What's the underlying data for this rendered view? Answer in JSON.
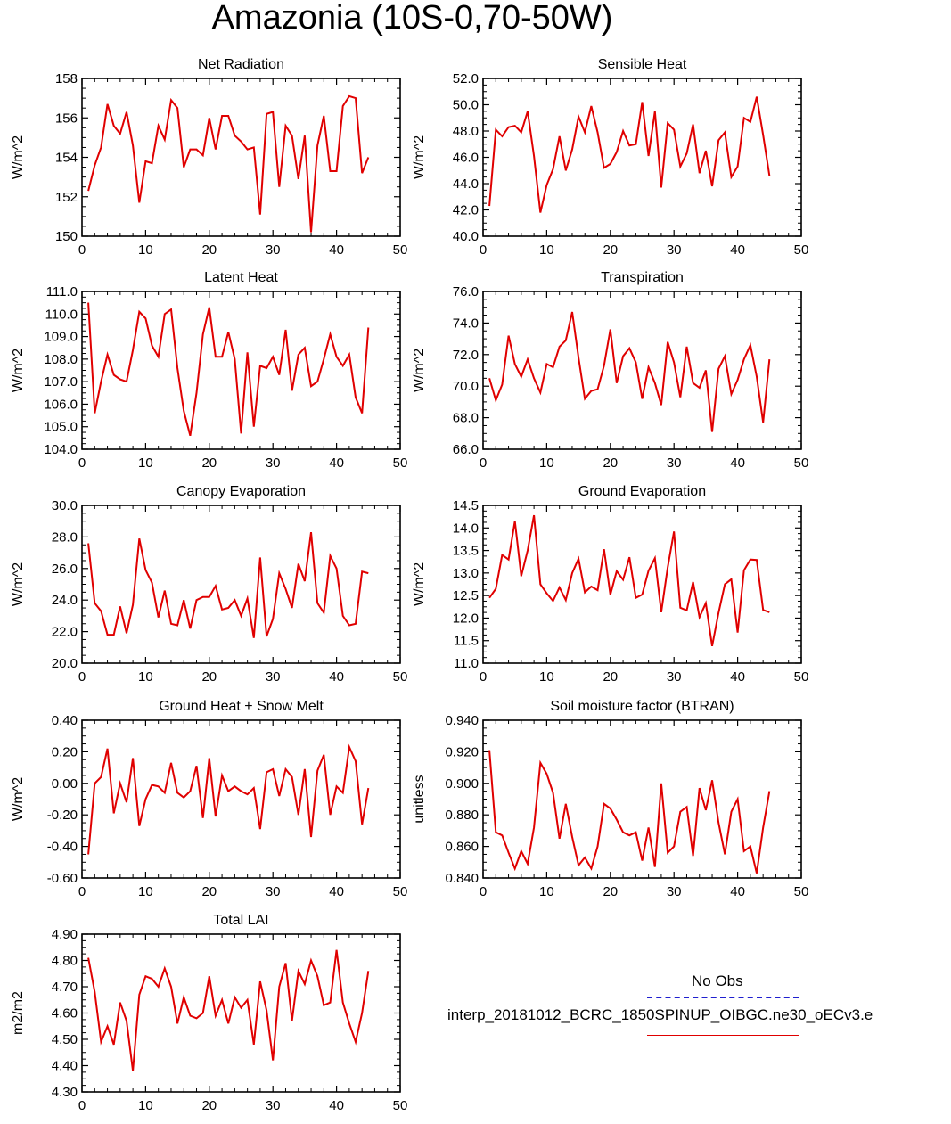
{
  "title": "Amazonia (10S-0,70-50W)",
  "legend": {
    "obs_label": "No Obs",
    "model_label": "interp_20181012_BCRC_1850SPINUP_OIBGC.ne30_oECv3.e"
  },
  "colors": {
    "model_line": "#e00000",
    "obs_line": "#1f1fcf",
    "axis": "#000000"
  },
  "chart_data": [
    {
      "type": "line",
      "title": "Net Radiation",
      "ylabel": "W/m^2",
      "xlim": [
        0,
        50
      ],
      "ylim": [
        150,
        158
      ],
      "xticks": [
        0,
        10,
        20,
        30,
        40,
        50
      ],
      "yticks": [
        "150",
        "152",
        "154",
        "156",
        "158"
      ],
      "x": [
        1,
        2,
        3,
        4,
        5,
        6,
        7,
        8,
        9,
        10,
        11,
        12,
        13,
        14,
        15,
        16,
        17,
        18,
        19,
        20,
        21,
        22,
        23,
        24,
        25,
        26,
        27,
        28,
        29,
        30,
        31,
        32,
        33,
        34,
        35,
        36,
        37,
        38,
        39,
        40,
        41,
        42,
        43,
        44,
        45
      ],
      "series": [
        {
          "values": [
            152.3,
            153.6,
            154.5,
            156.7,
            155.6,
            155.2,
            156.3,
            154.6,
            151.7,
            153.8,
            153.7,
            155.6,
            154.9,
            156.9,
            156.5,
            153.5,
            154.4,
            154.4,
            154.1,
            156.0,
            154.4,
            156.1,
            156.1,
            155.1,
            154.8,
            154.4,
            154.5,
            151.1,
            156.2,
            156.3,
            152.5,
            155.6,
            155.1,
            152.9,
            155.1,
            150.2,
            154.6,
            156.1,
            153.3,
            153.3,
            156.6,
            157.1,
            157.0,
            153.2,
            154.0
          ]
        }
      ]
    },
    {
      "type": "line",
      "title": "Sensible Heat",
      "ylabel": "W/m^2",
      "xlim": [
        0,
        50
      ],
      "ylim": [
        40,
        52
      ],
      "xticks": [
        0,
        10,
        20,
        30,
        40,
        50
      ],
      "yticks": [
        "40.0",
        "42.0",
        "44.0",
        "46.0",
        "48.0",
        "50.0",
        "52.0"
      ],
      "x": [
        1,
        2,
        3,
        4,
        5,
        6,
        7,
        8,
        9,
        10,
        11,
        12,
        13,
        14,
        15,
        16,
        17,
        18,
        19,
        20,
        21,
        22,
        23,
        24,
        25,
        26,
        27,
        28,
        29,
        30,
        31,
        32,
        33,
        34,
        35,
        36,
        37,
        38,
        39,
        40,
        41,
        42,
        43,
        44,
        45
      ],
      "series": [
        {
          "values": [
            42.3,
            48.1,
            47.6,
            48.3,
            48.4,
            47.9,
            49.5,
            46.1,
            41.8,
            43.9,
            45.1,
            47.6,
            45.0,
            46.6,
            49.1,
            47.9,
            49.9,
            47.9,
            45.2,
            45.5,
            46.4,
            48.0,
            46.9,
            47.0,
            50.2,
            46.1,
            49.5,
            43.7,
            48.6,
            48.1,
            45.3,
            46.3,
            48.5,
            44.8,
            46.5,
            43.8,
            47.3,
            47.9,
            44.5,
            45.3,
            49.0,
            48.7,
            50.6,
            47.7,
            44.6
          ]
        }
      ]
    },
    {
      "type": "line",
      "title": "Latent Heat",
      "ylabel": "W/m^2",
      "xlim": [
        0,
        50
      ],
      "ylim": [
        104,
        111
      ],
      "xticks": [
        0,
        10,
        20,
        30,
        40,
        50
      ],
      "yticks": [
        "104.0",
        "105.0",
        "106.0",
        "107.0",
        "108.0",
        "109.0",
        "110.0",
        "111.0"
      ],
      "x": [
        1,
        2,
        3,
        4,
        5,
        6,
        7,
        8,
        9,
        10,
        11,
        12,
        13,
        14,
        15,
        16,
        17,
        18,
        19,
        20,
        21,
        22,
        23,
        24,
        25,
        26,
        27,
        28,
        29,
        30,
        31,
        32,
        33,
        34,
        35,
        36,
        37,
        38,
        39,
        40,
        41,
        42,
        43,
        44,
        45
      ],
      "series": [
        {
          "values": [
            110.5,
            105.6,
            107.0,
            108.2,
            107.3,
            107.1,
            107.0,
            108.4,
            110.1,
            109.8,
            108.6,
            108.1,
            110.0,
            110.2,
            107.6,
            105.7,
            104.6,
            106.5,
            109.1,
            110.3,
            108.1,
            108.1,
            109.2,
            108.0,
            104.7,
            108.3,
            105.0,
            107.7,
            107.6,
            108.1,
            107.3,
            109.3,
            106.6,
            108.2,
            108.5,
            106.8,
            107.0,
            108.0,
            109.1,
            108.1,
            107.7,
            108.2,
            106.3,
            105.6,
            109.4
          ]
        }
      ]
    },
    {
      "type": "line",
      "title": "Transpiration",
      "ylabel": "W/m^2",
      "xlim": [
        0,
        50
      ],
      "ylim": [
        66,
        76
      ],
      "xticks": [
        0,
        10,
        20,
        30,
        40,
        50
      ],
      "yticks": [
        "66.0",
        "68.0",
        "70.0",
        "72.0",
        "74.0",
        "76.0"
      ],
      "x": [
        1,
        2,
        3,
        4,
        5,
        6,
        7,
        8,
        9,
        10,
        11,
        12,
        13,
        14,
        15,
        16,
        17,
        18,
        19,
        20,
        21,
        22,
        23,
        24,
        25,
        26,
        27,
        28,
        29,
        30,
        31,
        32,
        33,
        34,
        35,
        36,
        37,
        38,
        39,
        40,
        41,
        42,
        43,
        44,
        45
      ],
      "series": [
        {
          "values": [
            70.5,
            69.1,
            70.1,
            73.2,
            71.4,
            70.6,
            71.7,
            70.5,
            69.6,
            71.4,
            71.2,
            72.5,
            72.9,
            74.7,
            71.8,
            69.2,
            69.7,
            69.8,
            71.3,
            73.6,
            70.2,
            71.9,
            72.4,
            71.5,
            69.2,
            71.2,
            70.2,
            68.8,
            72.8,
            71.5,
            69.3,
            72.5,
            70.2,
            69.9,
            71.0,
            67.1,
            71.1,
            71.9,
            69.5,
            70.4,
            71.7,
            72.6,
            70.6,
            67.7,
            71.7
          ]
        }
      ]
    },
    {
      "type": "line",
      "title": "Canopy Evaporation",
      "ylabel": "W/m^2",
      "xlim": [
        0,
        50
      ],
      "ylim": [
        20,
        30
      ],
      "xticks": [
        0,
        10,
        20,
        30,
        40,
        50
      ],
      "yticks": [
        "20.0",
        "22.0",
        "24.0",
        "26.0",
        "28.0",
        "30.0"
      ],
      "x": [
        1,
        2,
        3,
        4,
        5,
        6,
        7,
        8,
        9,
        10,
        11,
        12,
        13,
        14,
        15,
        16,
        17,
        18,
        19,
        20,
        21,
        22,
        23,
        24,
        25,
        26,
        27,
        28,
        29,
        30,
        31,
        32,
        33,
        34,
        35,
        36,
        37,
        38,
        39,
        40,
        41,
        42,
        43,
        44,
        45
      ],
      "series": [
        {
          "values": [
            27.6,
            23.8,
            23.3,
            21.8,
            21.8,
            23.6,
            21.9,
            23.7,
            27.9,
            25.9,
            25.1,
            22.9,
            24.6,
            22.5,
            22.4,
            24.0,
            22.2,
            24.0,
            24.2,
            24.2,
            24.9,
            23.4,
            23.5,
            24.0,
            23.0,
            24.1,
            21.6,
            26.7,
            21.7,
            22.8,
            25.7,
            24.7,
            23.5,
            26.3,
            25.2,
            28.3,
            23.8,
            23.2,
            26.8,
            26.0,
            23.0,
            22.4,
            22.5,
            25.8,
            25.7
          ]
        }
      ]
    },
    {
      "type": "line",
      "title": "Ground Evaporation",
      "ylabel": "W/m^2",
      "xlim": [
        0,
        50
      ],
      "ylim": [
        11,
        14.5
      ],
      "xticks": [
        0,
        10,
        20,
        30,
        40,
        50
      ],
      "yticks": [
        "11.0",
        "11.5",
        "12.0",
        "12.5",
        "13.0",
        "13.5",
        "14.0",
        "14.5"
      ],
      "x": [
        1,
        2,
        3,
        4,
        5,
        6,
        7,
        8,
        9,
        10,
        11,
        12,
        13,
        14,
        15,
        16,
        17,
        18,
        19,
        20,
        21,
        22,
        23,
        24,
        25,
        26,
        27,
        28,
        29,
        30,
        31,
        32,
        33,
        34,
        35,
        36,
        37,
        38,
        39,
        40,
        41,
        42,
        43,
        44,
        45
      ],
      "series": [
        {
          "values": [
            12.45,
            12.65,
            13.4,
            13.3,
            14.15,
            12.93,
            13.5,
            14.28,
            12.75,
            12.55,
            12.38,
            12.68,
            12.4,
            13.0,
            13.32,
            12.57,
            12.7,
            12.62,
            13.53,
            12.52,
            13.04,
            12.85,
            13.35,
            12.45,
            12.52,
            13.05,
            13.33,
            12.13,
            13.12,
            13.92,
            12.23,
            12.17,
            12.8,
            12.02,
            12.33,
            11.38,
            12.12,
            12.75,
            12.86,
            11.68,
            13.06,
            13.3,
            13.29,
            12.18,
            12.13
          ]
        }
      ]
    },
    {
      "type": "line",
      "title": "Ground Heat + Snow Melt",
      "ylabel": "W/m^2",
      "xlim": [
        0,
        50
      ],
      "ylim": [
        -0.6,
        0.4
      ],
      "xticks": [
        0,
        10,
        20,
        30,
        40,
        50
      ],
      "yticks": [
        "-0.60",
        "-0.40",
        "-0.20",
        "0.00",
        "0.20",
        "0.40"
      ],
      "x": [
        1,
        2,
        3,
        4,
        5,
        6,
        7,
        8,
        9,
        10,
        11,
        12,
        13,
        14,
        15,
        16,
        17,
        18,
        19,
        20,
        21,
        22,
        23,
        24,
        25,
        26,
        27,
        28,
        29,
        30,
        31,
        32,
        33,
        34,
        35,
        36,
        37,
        38,
        39,
        40,
        41,
        42,
        43,
        44,
        45
      ],
      "series": [
        {
          "values": [
            -0.45,
            0.0,
            0.04,
            0.22,
            -0.19,
            0.0,
            -0.12,
            0.16,
            -0.27,
            -0.1,
            -0.01,
            -0.02,
            -0.06,
            0.13,
            -0.06,
            -0.09,
            -0.05,
            0.11,
            -0.22,
            0.16,
            -0.21,
            0.05,
            -0.05,
            -0.02,
            -0.05,
            -0.07,
            -0.03,
            -0.29,
            0.07,
            0.09,
            -0.08,
            0.09,
            0.04,
            -0.2,
            0.09,
            -0.34,
            0.08,
            0.18,
            -0.2,
            -0.02,
            -0.06,
            0.23,
            0.14,
            -0.26,
            -0.03
          ]
        }
      ]
    },
    {
      "type": "line",
      "title": "Soil moisture factor (BTRAN)",
      "ylabel": "unitless",
      "xlim": [
        0,
        50
      ],
      "ylim": [
        0.84,
        0.94
      ],
      "xticks": [
        0,
        10,
        20,
        30,
        40,
        50
      ],
      "yticks": [
        "0.840",
        "0.860",
        "0.880",
        "0.900",
        "0.920",
        "0.940"
      ],
      "x": [
        1,
        2,
        3,
        4,
        5,
        6,
        7,
        8,
        9,
        10,
        11,
        12,
        13,
        14,
        15,
        16,
        17,
        18,
        19,
        20,
        21,
        22,
        23,
        24,
        25,
        26,
        27,
        28,
        29,
        30,
        31,
        32,
        33,
        34,
        35,
        36,
        37,
        38,
        39,
        40,
        41,
        42,
        43,
        44,
        45
      ],
      "series": [
        {
          "values": [
            0.921,
            0.869,
            0.867,
            0.856,
            0.846,
            0.857,
            0.849,
            0.872,
            0.913,
            0.906,
            0.894,
            0.865,
            0.887,
            0.866,
            0.848,
            0.853,
            0.846,
            0.86,
            0.887,
            0.884,
            0.877,
            0.869,
            0.867,
            0.869,
            0.851,
            0.872,
            0.847,
            0.9,
            0.856,
            0.86,
            0.882,
            0.885,
            0.854,
            0.897,
            0.883,
            0.902,
            0.875,
            0.855,
            0.882,
            0.89,
            0.857,
            0.86,
            0.843,
            0.872,
            0.895
          ]
        }
      ]
    },
    {
      "type": "line",
      "title": "Total LAI",
      "ylabel": "m2/m2",
      "xlim": [
        0,
        50
      ],
      "ylim": [
        4.3,
        4.9
      ],
      "xticks": [
        0,
        10,
        20,
        30,
        40,
        50
      ],
      "yticks": [
        "4.30",
        "4.40",
        "4.50",
        "4.60",
        "4.70",
        "4.80",
        "4.90"
      ],
      "x": [
        1,
        2,
        3,
        4,
        5,
        6,
        7,
        8,
        9,
        10,
        11,
        12,
        13,
        14,
        15,
        16,
        17,
        18,
        19,
        20,
        21,
        22,
        23,
        24,
        25,
        26,
        27,
        28,
        29,
        30,
        31,
        32,
        33,
        34,
        35,
        36,
        37,
        38,
        39,
        40,
        41,
        42,
        43,
        44,
        45
      ],
      "series": [
        {
          "values": [
            4.81,
            4.68,
            4.49,
            4.55,
            4.48,
            4.64,
            4.57,
            4.38,
            4.67,
            4.74,
            4.73,
            4.7,
            4.77,
            4.7,
            4.56,
            4.66,
            4.59,
            4.58,
            4.6,
            4.74,
            4.59,
            4.65,
            4.56,
            4.66,
            4.62,
            4.65,
            4.48,
            4.72,
            4.61,
            4.42,
            4.7,
            4.79,
            4.57,
            4.76,
            4.71,
            4.8,
            4.74,
            4.63,
            4.64,
            4.84,
            4.64,
            4.56,
            4.49,
            4.6,
            4.76
          ]
        }
      ]
    }
  ]
}
